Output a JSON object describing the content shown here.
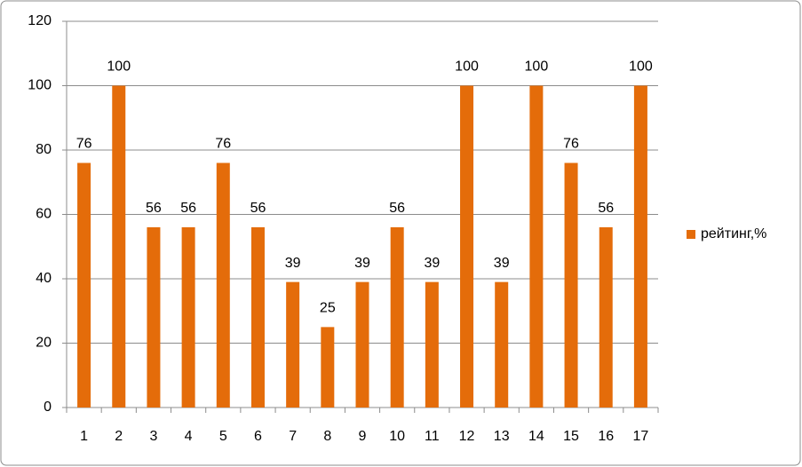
{
  "chart_data": {
    "type": "bar",
    "categories": [
      "1",
      "2",
      "3",
      "4",
      "5",
      "6",
      "7",
      "8",
      "9",
      "10",
      "11",
      "12",
      "13",
      "14",
      "15",
      "16",
      "17"
    ],
    "series": [
      {
        "name": "рейтинг,%",
        "color": "#e46c0a",
        "values": [
          76,
          100,
          56,
          56,
          76,
          56,
          39,
          25,
          39,
          56,
          39,
          100,
          39,
          100,
          76,
          56,
          100
        ]
      }
    ],
    "ylim": [
      0,
      120
    ],
    "yticks": [
      0,
      20,
      40,
      60,
      80,
      100,
      120
    ],
    "grid": true,
    "legend": "right"
  }
}
